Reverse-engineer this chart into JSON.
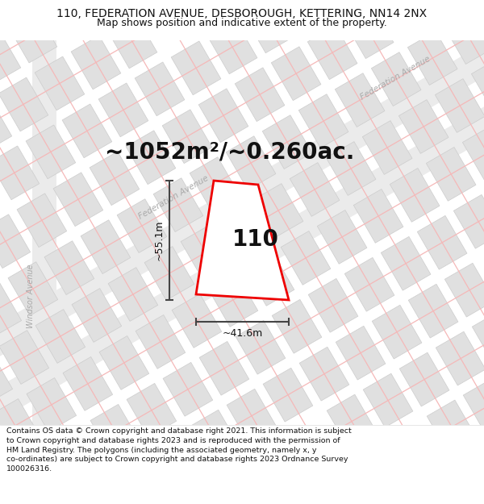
{
  "title_line1": "110, FEDERATION AVENUE, DESBOROUGH, KETTERING, NN14 2NX",
  "title_line2": "Map shows position and indicative extent of the property.",
  "footer_text": "Contains OS data © Crown copyright and database right 2021. This information is subject to Crown copyright and database rights 2023 and is reproduced with the permission of HM Land Registry. The polygons (including the associated geometry, namely x, y co-ordinates) are subject to Crown copyright and database rights 2023 Ordnance Survey 100026316.",
  "area_label": "~1052m²/~0.260ac.",
  "property_number": "110",
  "dim_vertical": "~55.1m",
  "dim_horizontal": "~41.6m",
  "street_label_fed1": "Federation Avenue",
  "street_label_fed2": "Federation Avenue",
  "street_label_wind": "Windsor Avenue",
  "map_bg": "#ffffff",
  "building_fill": "#e0e0e0",
  "building_edge": "#cccccc",
  "road_line_color": "#f5b8b8",
  "road_fill": "#ebebeb",
  "property_color": "#ee0000",
  "property_fill": "#ffffff",
  "text_color": "#111111",
  "street_text_color": "#aaaaaa",
  "dim_color": "#444444",
  "title_fontsize": 10,
  "subtitle_fontsize": 9,
  "area_fontsize": 20,
  "number_fontsize": 20,
  "dim_fontsize": 9,
  "footer_fontsize": 6.8
}
